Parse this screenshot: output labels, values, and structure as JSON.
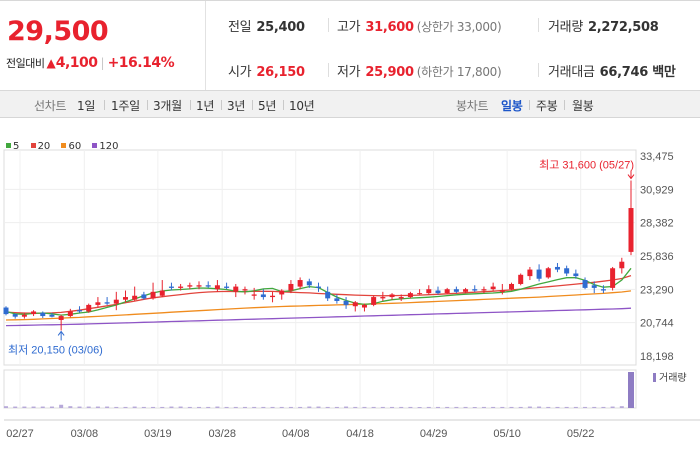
{
  "quote": {
    "price": "29,500",
    "change_label": "전일대비",
    "change_arrow": "▲",
    "change_amount": "4,100",
    "change_separator": "|",
    "change_percent": "+16.14%",
    "colors": {
      "up": "#e8222e",
      "down": "#2f6bd0"
    }
  },
  "stats": {
    "prev_close": {
      "label": "전일",
      "value": "25,400"
    },
    "high": {
      "label": "고가",
      "value": "31,600",
      "sub": "(상한가 33,000)"
    },
    "volume": {
      "label": "거래량",
      "value": "2,272,508"
    },
    "open": {
      "label": "시가",
      "value": "26,150"
    },
    "low": {
      "label": "저가",
      "value": "25,900",
      "sub": "(하한가 17,800)"
    },
    "turnover": {
      "label": "거래대금",
      "value": "66,746 백만"
    }
  },
  "tabs": {
    "line_chart": "선차트",
    "periods": [
      "1일",
      "1주일",
      "3개월",
      "1년",
      "3년",
      "5년",
      "10년"
    ],
    "candle_chart": "봉차트",
    "candle_periods": [
      "일봉",
      "주봉",
      "월봉"
    ],
    "active_candle": "일봉"
  },
  "legend": [
    {
      "label": "5",
      "color": "#41a83e"
    },
    {
      "label": "20",
      "color": "#e2443c"
    },
    {
      "label": "60",
      "color": "#f08c1e"
    },
    {
      "label": "120",
      "color": "#8e55c6"
    }
  ],
  "chart_data": {
    "type": "candlestick",
    "y_ticks": [
      "33,475",
      "30,929",
      "28,382",
      "25,836",
      "23,290",
      "20,744",
      "18,198"
    ],
    "y_tick_values": [
      33475,
      30929,
      28382,
      25836,
      23290,
      20744,
      18198
    ],
    "x_ticks": [
      "02/27",
      "03/08",
      "03/19",
      "03/28",
      "04/08",
      "04/18",
      "04/29",
      "05/10",
      "05/22"
    ],
    "annotations": {
      "high": {
        "text": "최고 31,600 (05/27)",
        "value": 31600
      },
      "low": {
        "text": "최저 20,150 (03/06)",
        "value": 20150
      }
    },
    "volume_label": "거래량",
    "series": [
      {
        "name": "MA5",
        "color": "#41a83e",
        "values": [
          21600,
          21420,
          21380,
          21450,
          21480,
          21420,
          21320,
          21380,
          21480,
          21560,
          21720,
          21910,
          22090,
          22330,
          22560,
          22800,
          23020,
          23160,
          23240,
          23280,
          23320,
          23390,
          23380,
          23330,
          23280,
          23140,
          23100,
          23180,
          23320,
          23360,
          23120,
          23180,
          23350,
          23500,
          23420,
          23050,
          22700,
          22440,
          22240,
          22140,
          22200,
          22380,
          22500,
          22560,
          22620,
          22650,
          22690,
          22740,
          22810,
          22870,
          22920,
          22950,
          22980,
          23010,
          23060,
          23140,
          23300,
          23500,
          23700,
          23860,
          24030,
          24180,
          24180,
          23980,
          23650,
          23450,
          23510,
          24000,
          24900
        ]
      },
      {
        "name": "MA20",
        "color": "#e2443c",
        "values": [
          21540,
          21510,
          21480,
          21470,
          21470,
          21490,
          21530,
          21610,
          21700,
          21810,
          21920,
          22030,
          22140,
          22270,
          22390,
          22530,
          22640,
          22730,
          22810,
          22890,
          22970,
          23040,
          23090,
          23120,
          23130,
          23120,
          23120,
          23130,
          23140,
          23130,
          23100,
          23070,
          23040,
          23020,
          22970,
          22940,
          22910,
          22880,
          22850,
          22830,
          22810,
          22800,
          22810,
          22820,
          22830,
          22850,
          22880,
          22910,
          22950,
          22990,
          23030,
          23070,
          23110,
          23150,
          23200,
          23250,
          23310,
          23370,
          23430,
          23490,
          23550,
          23620,
          23690,
          23760,
          23830,
          23910,
          24000,
          24120,
          24340
        ]
      },
      {
        "name": "MA60",
        "color": "#f08c1e",
        "values": [
          20950,
          20960,
          20980,
          21000,
          21030,
          21060,
          21090,
          21120,
          21150,
          21190,
          21220,
          21260,
          21300,
          21340,
          21380,
          21420,
          21460,
          21500,
          21540,
          21580,
          21620,
          21660,
          21700,
          21740,
          21780,
          21820,
          21860,
          21890,
          21920,
          21950,
          21980,
          22000,
          22020,
          22040,
          22060,
          22080,
          22100,
          22120,
          22140,
          22160,
          22180,
          22200,
          22220,
          22250,
          22280,
          22310,
          22340,
          22370,
          22400,
          22430,
          22460,
          22490,
          22520,
          22550,
          22580,
          22610,
          22640,
          22670,
          22700,
          22740,
          22780,
          22820,
          22860,
          22900,
          22940,
          22980,
          23030,
          23090,
          23170
        ]
      },
      {
        "name": "MA120",
        "color": "#8e55c6",
        "values": [
          20520,
          20530,
          20540,
          20555,
          20570,
          20585,
          20600,
          20615,
          20630,
          20650,
          20670,
          20690,
          20710,
          20730,
          20750,
          20770,
          20790,
          20810,
          20830,
          20850,
          20870,
          20890,
          20910,
          20930,
          20950,
          20970,
          20990,
          21010,
          21030,
          21050,
          21070,
          21090,
          21110,
          21130,
          21150,
          21170,
          21190,
          21210,
          21230,
          21250,
          21270,
          21290,
          21310,
          21330,
          21350,
          21370,
          21390,
          21410,
          21430,
          21450,
          21470,
          21490,
          21510,
          21530,
          21550,
          21570,
          21590,
          21610,
          21630,
          21650,
          21670,
          21690,
          21710,
          21730,
          21750,
          21770,
          21790,
          21810,
          21850
        ]
      }
    ],
    "candles": [
      {
        "o": 21900,
        "h": 22000,
        "l": 21300,
        "c": 21400
      },
      {
        "o": 21400,
        "h": 21450,
        "l": 21050,
        "c": 21200
      },
      {
        "o": 21200,
        "h": 21500,
        "l": 21050,
        "c": 21350
      },
      {
        "o": 21400,
        "h": 21700,
        "l": 21250,
        "c": 21600
      },
      {
        "o": 21500,
        "h": 21600,
        "l": 21100,
        "c": 21250
      },
      {
        "o": 21350,
        "h": 21500,
        "l": 21150,
        "c": 21200
      },
      {
        "o": 20950,
        "h": 21350,
        "l": 20150,
        "c": 21250
      },
      {
        "o": 21250,
        "h": 21800,
        "l": 21150,
        "c": 21600
      },
      {
        "o": 21700,
        "h": 22000,
        "l": 21500,
        "c": 21600
      },
      {
        "o": 21600,
        "h": 22200,
        "l": 21500,
        "c": 22100
      },
      {
        "o": 22100,
        "h": 22700,
        "l": 21900,
        "c": 22300
      },
      {
        "o": 22300,
        "h": 22700,
        "l": 22100,
        "c": 22200
      },
      {
        "o": 22200,
        "h": 23100,
        "l": 21700,
        "c": 22500
      },
      {
        "o": 22500,
        "h": 23200,
        "l": 22300,
        "c": 22700
      },
      {
        "o": 22500,
        "h": 23500,
        "l": 22400,
        "c": 22800
      },
      {
        "o": 22900,
        "h": 23100,
        "l": 22500,
        "c": 22600
      },
      {
        "o": 22600,
        "h": 23800,
        "l": 22500,
        "c": 23100
      },
      {
        "o": 22800,
        "h": 24000,
        "l": 22700,
        "c": 23200
      },
      {
        "o": 23500,
        "h": 23800,
        "l": 23200,
        "c": 23400
      },
      {
        "o": 23400,
        "h": 23700,
        "l": 23200,
        "c": 23500
      },
      {
        "o": 23500,
        "h": 23800,
        "l": 23300,
        "c": 23600
      },
      {
        "o": 23500,
        "h": 23900,
        "l": 23300,
        "c": 23600
      },
      {
        "o": 23600,
        "h": 23900,
        "l": 23400,
        "c": 23500
      },
      {
        "o": 23300,
        "h": 24000,
        "l": 23100,
        "c": 23600
      },
      {
        "o": 23500,
        "h": 23800,
        "l": 23300,
        "c": 23400
      },
      {
        "o": 23100,
        "h": 23700,
        "l": 22700,
        "c": 23500
      },
      {
        "o": 23200,
        "h": 23500,
        "l": 22900,
        "c": 23300
      },
      {
        "o": 22800,
        "h": 23400,
        "l": 22500,
        "c": 22900
      },
      {
        "o": 22900,
        "h": 23300,
        "l": 22500,
        "c": 22700
      },
      {
        "o": 22700,
        "h": 23100,
        "l": 22300,
        "c": 22800
      },
      {
        "o": 22900,
        "h": 23300,
        "l": 22500,
        "c": 23200
      },
      {
        "o": 23200,
        "h": 24000,
        "l": 23000,
        "c": 23700
      },
      {
        "o": 23500,
        "h": 24200,
        "l": 23300,
        "c": 24000
      },
      {
        "o": 23900,
        "h": 24100,
        "l": 23400,
        "c": 23600
      },
      {
        "o": 23500,
        "h": 23800,
        "l": 23100,
        "c": 23400
      },
      {
        "o": 23100,
        "h": 23500,
        "l": 22400,
        "c": 22600
      },
      {
        "o": 22600,
        "h": 22900,
        "l": 22200,
        "c": 22400
      },
      {
        "o": 22400,
        "h": 22700,
        "l": 21800,
        "c": 22100
      },
      {
        "o": 22000,
        "h": 22400,
        "l": 21600,
        "c": 22300
      },
      {
        "o": 21900,
        "h": 22200,
        "l": 21600,
        "c": 22100
      },
      {
        "o": 22100,
        "h": 22800,
        "l": 22000,
        "c": 22700
      },
      {
        "o": 22600,
        "h": 23100,
        "l": 22400,
        "c": 22700
      },
      {
        "o": 22700,
        "h": 23000,
        "l": 22500,
        "c": 22900
      },
      {
        "o": 22600,
        "h": 22900,
        "l": 22400,
        "c": 22700
      },
      {
        "o": 22700,
        "h": 23100,
        "l": 22600,
        "c": 23000
      },
      {
        "o": 23000,
        "h": 23300,
        "l": 22900,
        "c": 23000
      },
      {
        "o": 23000,
        "h": 23600,
        "l": 22900,
        "c": 23300
      },
      {
        "o": 23200,
        "h": 23500,
        "l": 22900,
        "c": 23000
      },
      {
        "o": 23000,
        "h": 23400,
        "l": 22900,
        "c": 23300
      },
      {
        "o": 23300,
        "h": 23500,
        "l": 23000,
        "c": 23100
      },
      {
        "o": 23100,
        "h": 23400,
        "l": 23000,
        "c": 23300
      },
      {
        "o": 23300,
        "h": 23600,
        "l": 23100,
        "c": 23200
      },
      {
        "o": 23200,
        "h": 23500,
        "l": 23000,
        "c": 23300
      },
      {
        "o": 23300,
        "h": 23800,
        "l": 23200,
        "c": 23500
      },
      {
        "o": 23100,
        "h": 23700,
        "l": 22900,
        "c": 23200
      },
      {
        "o": 23300,
        "h": 23800,
        "l": 23200,
        "c": 23700
      },
      {
        "o": 23700,
        "h": 24500,
        "l": 23600,
        "c": 24400
      },
      {
        "o": 24300,
        "h": 25000,
        "l": 24000,
        "c": 24800
      },
      {
        "o": 24800,
        "h": 25200,
        "l": 23900,
        "c": 24100
      },
      {
        "o": 24200,
        "h": 25000,
        "l": 24100,
        "c": 24900
      },
      {
        "o": 25000,
        "h": 25300,
        "l": 24600,
        "c": 24800
      },
      {
        "o": 24900,
        "h": 25100,
        "l": 24300,
        "c": 24500
      },
      {
        "o": 24500,
        "h": 24800,
        "l": 24100,
        "c": 24300
      },
      {
        "o": 24000,
        "h": 24200,
        "l": 23300,
        "c": 23400
      },
      {
        "o": 23600,
        "h": 23900,
        "l": 23000,
        "c": 23400
      },
      {
        "o": 23300,
        "h": 23600,
        "l": 23000,
        "c": 23200
      },
      {
        "o": 23400,
        "h": 25000,
        "l": 23200,
        "c": 24900
      },
      {
        "o": 24900,
        "h": 25700,
        "l": 24500,
        "c": 25400
      },
      {
        "o": 26150,
        "h": 31600,
        "l": 25900,
        "c": 29500
      }
    ],
    "volume": [
      5,
      4,
      4,
      4,
      4,
      4,
      9,
      5,
      4,
      4,
      4,
      4,
      3,
      3,
      4,
      3,
      3,
      3,
      4,
      4,
      3,
      3,
      3,
      4,
      3,
      3,
      3,
      3,
      3,
      3,
      3,
      3,
      3,
      4,
      4,
      3,
      3,
      4,
      3,
      3,
      3,
      3,
      3,
      3,
      3,
      2,
      3,
      3,
      3,
      3,
      3,
      2,
      3,
      3,
      3,
      3,
      3,
      4,
      4,
      3,
      3,
      3,
      3,
      3,
      3,
      3,
      4,
      5,
      100
    ]
  }
}
